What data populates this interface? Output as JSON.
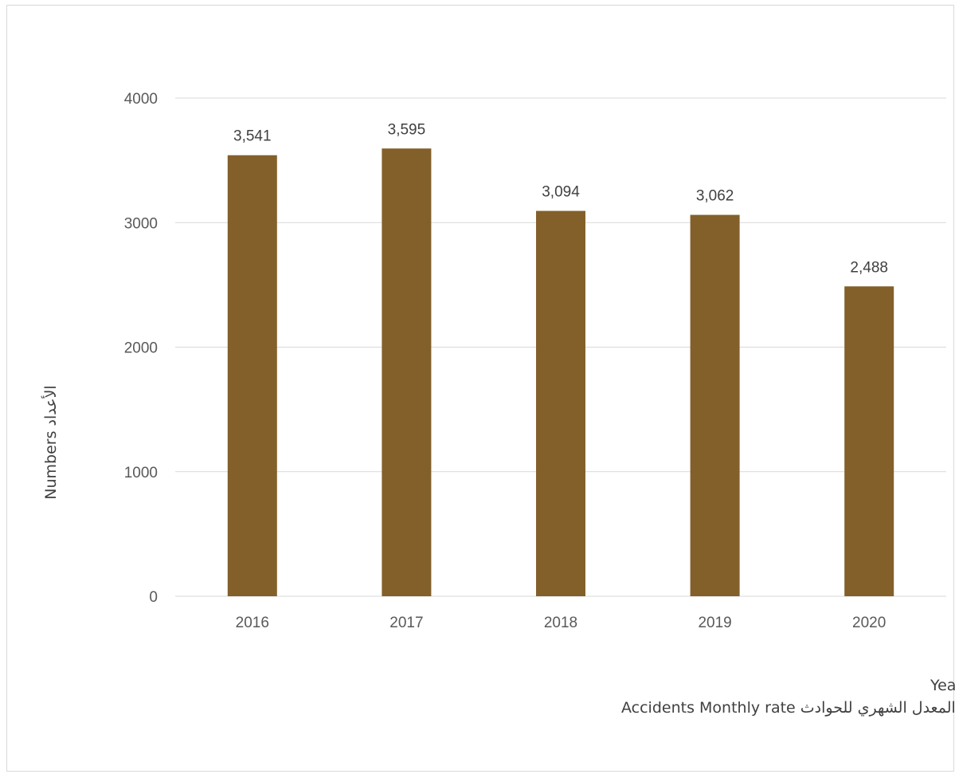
{
  "chart_data": {
    "type": "bar",
    "categories": [
      "2016",
      "2017",
      "2018",
      "2019",
      "2020"
    ],
    "values": [
      3541,
      3595,
      3094,
      3062,
      2488
    ],
    "data_labels": [
      "3,541",
      "3,595",
      "3,094",
      "3,062",
      "2,488"
    ],
    "series": [
      {
        "name": "المعدل الشهري للحوادث Accidents Monthly rate",
        "values": [
          3541,
          3595,
          3094,
          3062,
          2488
        ]
      }
    ],
    "title": "",
    "xlabel": "الأعوام Years",
    "ylabel": "الأعداد Numbers",
    "ylim": [
      0,
      4000
    ],
    "yticks": [
      0,
      1000,
      2000,
      3000,
      4000
    ],
    "grid": true,
    "legend_label": "المعدل الشهري  للحوادث  Accidents Monthly rate",
    "legend_placement": "bottom-left",
    "colors": {
      "bar": "#83602A",
      "grid": "#d9d9d9",
      "text": "#404040"
    }
  }
}
